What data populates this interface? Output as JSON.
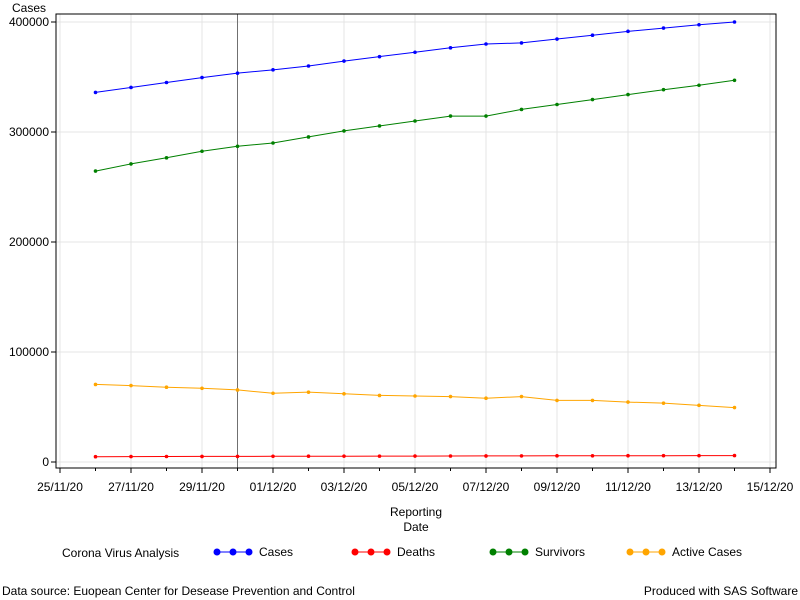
{
  "chart_data": {
    "type": "line",
    "ylabel": "Cases",
    "xlabel_lines": [
      "Reporting",
      "Date"
    ],
    "ylim": [
      0,
      400000
    ],
    "yticks": [
      0,
      100000,
      200000,
      300000,
      400000
    ],
    "y_tick_labels": [
      "0",
      "100000",
      "200000",
      "300000",
      "400000"
    ],
    "x_dates": [
      "2020-11-26",
      "2020-11-27",
      "2020-11-28",
      "2020-11-29",
      "2020-11-30",
      "2020-12-01",
      "2020-12-02",
      "2020-12-03",
      "2020-12-04",
      "2020-12-05",
      "2020-12-06",
      "2020-12-07",
      "2020-12-08",
      "2020-12-09",
      "2020-12-10",
      "2020-12-11",
      "2020-12-12",
      "2020-12-13",
      "2020-12-14"
    ],
    "x_tick_labels": [
      "25/11/20",
      "27/11/20",
      "29/11/20",
      "01/12/20",
      "03/12/20",
      "05/12/20",
      "07/12/20",
      "09/12/20",
      "11/12/20",
      "13/12/20",
      "15/12/20"
    ],
    "x_tick_dates": [
      "2020-11-25",
      "2020-11-27",
      "2020-11-29",
      "2020-12-01",
      "2020-12-03",
      "2020-12-05",
      "2020-12-07",
      "2020-12-09",
      "2020-12-11",
      "2020-12-13",
      "2020-12-15"
    ],
    "xlim": [
      "2020-11-25",
      "2020-12-15"
    ],
    "reference_line_date": "2020-11-30",
    "grid": true,
    "legend_title": "Corona Virus Analysis",
    "legend_position": "bottom",
    "series": [
      {
        "name": "Cases",
        "color": "#0000ff",
        "values": [
          336000,
          340500,
          345000,
          349500,
          353500,
          356500,
          360000,
          364500,
          368500,
          372500,
          376500,
          380000,
          381000,
          384500,
          388000,
          391500,
          394500,
          397500,
          400000
        ]
      },
      {
        "name": "Deaths",
        "color": "#ff0000",
        "values": [
          4800,
          4900,
          5000,
          5050,
          5100,
          5200,
          5250,
          5300,
          5350,
          5400,
          5450,
          5500,
          5550,
          5600,
          5650,
          5700,
          5750,
          5800,
          5850
        ]
      },
      {
        "name": "Survivors",
        "color": "#008000",
        "values": [
          264500,
          271000,
          276500,
          282500,
          287000,
          290000,
          295500,
          301000,
          305500,
          310000,
          314500,
          314500,
          320500,
          325000,
          329500,
          334000,
          338500,
          342500,
          347000
        ]
      },
      {
        "name": "Active Cases",
        "color": "#ffa500",
        "values": [
          70500,
          69500,
          68000,
          67000,
          65500,
          62500,
          63500,
          62000,
          60500,
          60000,
          59500,
          58000,
          59500,
          56000,
          56000,
          54500,
          53500,
          51500,
          49500
        ]
      }
    ]
  },
  "footer": {
    "source": "Data source: Euopean Center for Desease Prevention and Control",
    "credit": "Produced with SAS Software"
  }
}
